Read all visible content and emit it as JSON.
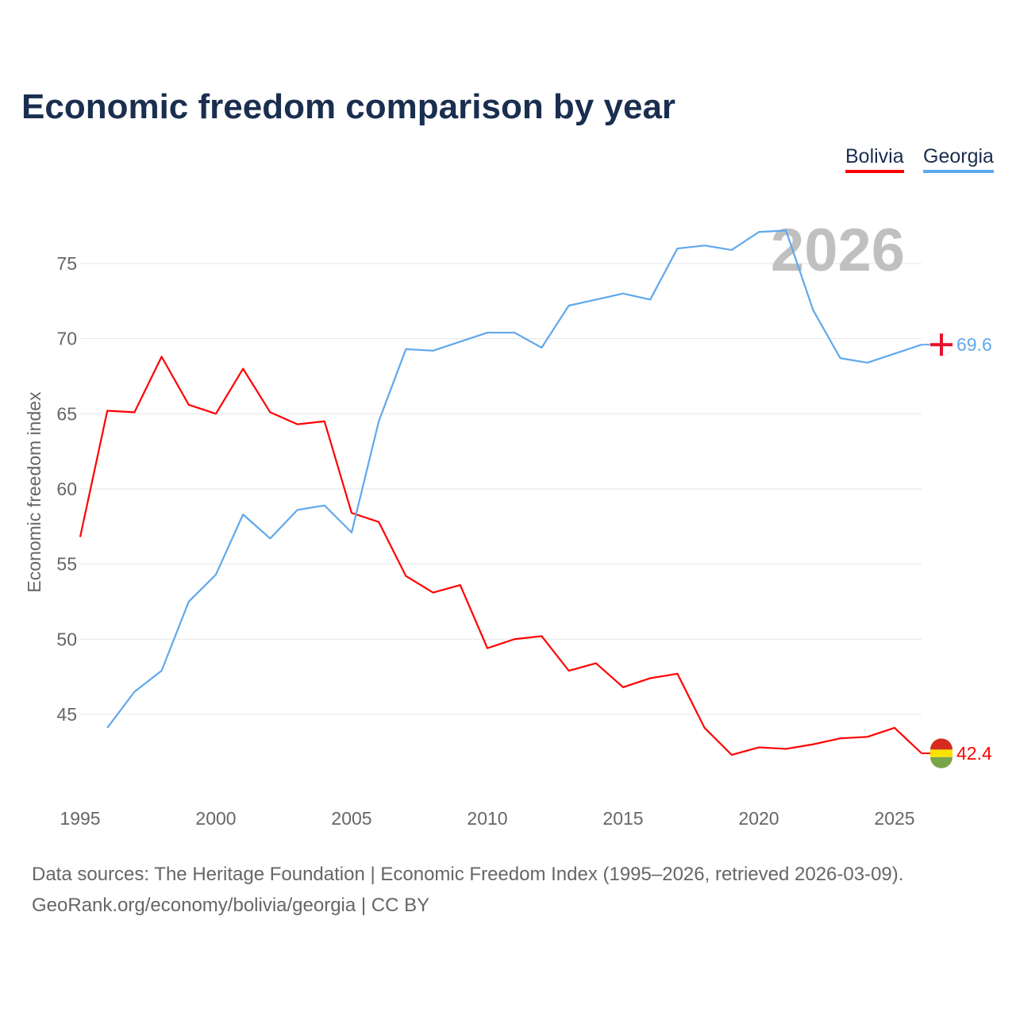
{
  "chart_data": {
    "type": "line",
    "title": "Economic freedom comparison by year",
    "xlabel": "",
    "ylabel": "Economic freedom index",
    "watermark_year": "2026",
    "xlim": [
      1995,
      2026
    ],
    "ylim": [
      41,
      79
    ],
    "xticks": [
      "1995",
      "2000",
      "2005",
      "2010",
      "2015",
      "2020",
      "2025"
    ],
    "yticks": [
      "45",
      "50",
      "55",
      "60",
      "65",
      "70",
      "75"
    ],
    "grid": true,
    "legend_position": "top-right",
    "series": [
      {
        "name": "Bolivia",
        "color": "#ff0000",
        "end_label": "42.4",
        "x": [
          1995,
          1996,
          1997,
          1998,
          1999,
          2000,
          2001,
          2002,
          2003,
          2004,
          2005,
          2006,
          2007,
          2008,
          2009,
          2010,
          2011,
          2012,
          2013,
          2014,
          2015,
          2016,
          2017,
          2018,
          2019,
          2020,
          2021,
          2022,
          2023,
          2024,
          2025,
          2026
        ],
        "values": [
          56.8,
          65.2,
          65.1,
          68.8,
          65.6,
          65.0,
          68.0,
          65.1,
          64.3,
          64.5,
          58.4,
          57.8,
          54.2,
          53.1,
          53.6,
          49.4,
          50.0,
          50.2,
          47.9,
          48.4,
          46.8,
          47.4,
          47.7,
          44.1,
          42.3,
          42.8,
          42.7,
          43.0,
          43.4,
          43.5,
          44.1,
          42.4
        ]
      },
      {
        "name": "Georgia",
        "color": "#60a8ec",
        "end_label": "69.6",
        "x": [
          1996,
          1997,
          1998,
          1999,
          2000,
          2001,
          2002,
          2003,
          2004,
          2005,
          2006,
          2007,
          2008,
          2009,
          2010,
          2011,
          2012,
          2013,
          2014,
          2015,
          2016,
          2017,
          2018,
          2019,
          2020,
          2021,
          2022,
          2023,
          2024,
          2025,
          2026
        ],
        "values": [
          44.1,
          46.5,
          47.9,
          52.5,
          54.3,
          58.3,
          56.7,
          58.6,
          58.9,
          57.1,
          64.5,
          69.3,
          69.2,
          69.8,
          70.4,
          70.4,
          69.4,
          72.2,
          72.6,
          73.0,
          72.6,
          76.0,
          76.2,
          75.9,
          77.1,
          77.2,
          71.9,
          68.7,
          68.4,
          69.0,
          69.6
        ]
      }
    ]
  },
  "footer": {
    "line1": "Data sources: The Heritage Foundation | Economic Freedom Index (1995–2026, retrieved 2026-03-09).",
    "line2": "GeoRank.org/economy/bolivia/georgia | CC BY"
  }
}
